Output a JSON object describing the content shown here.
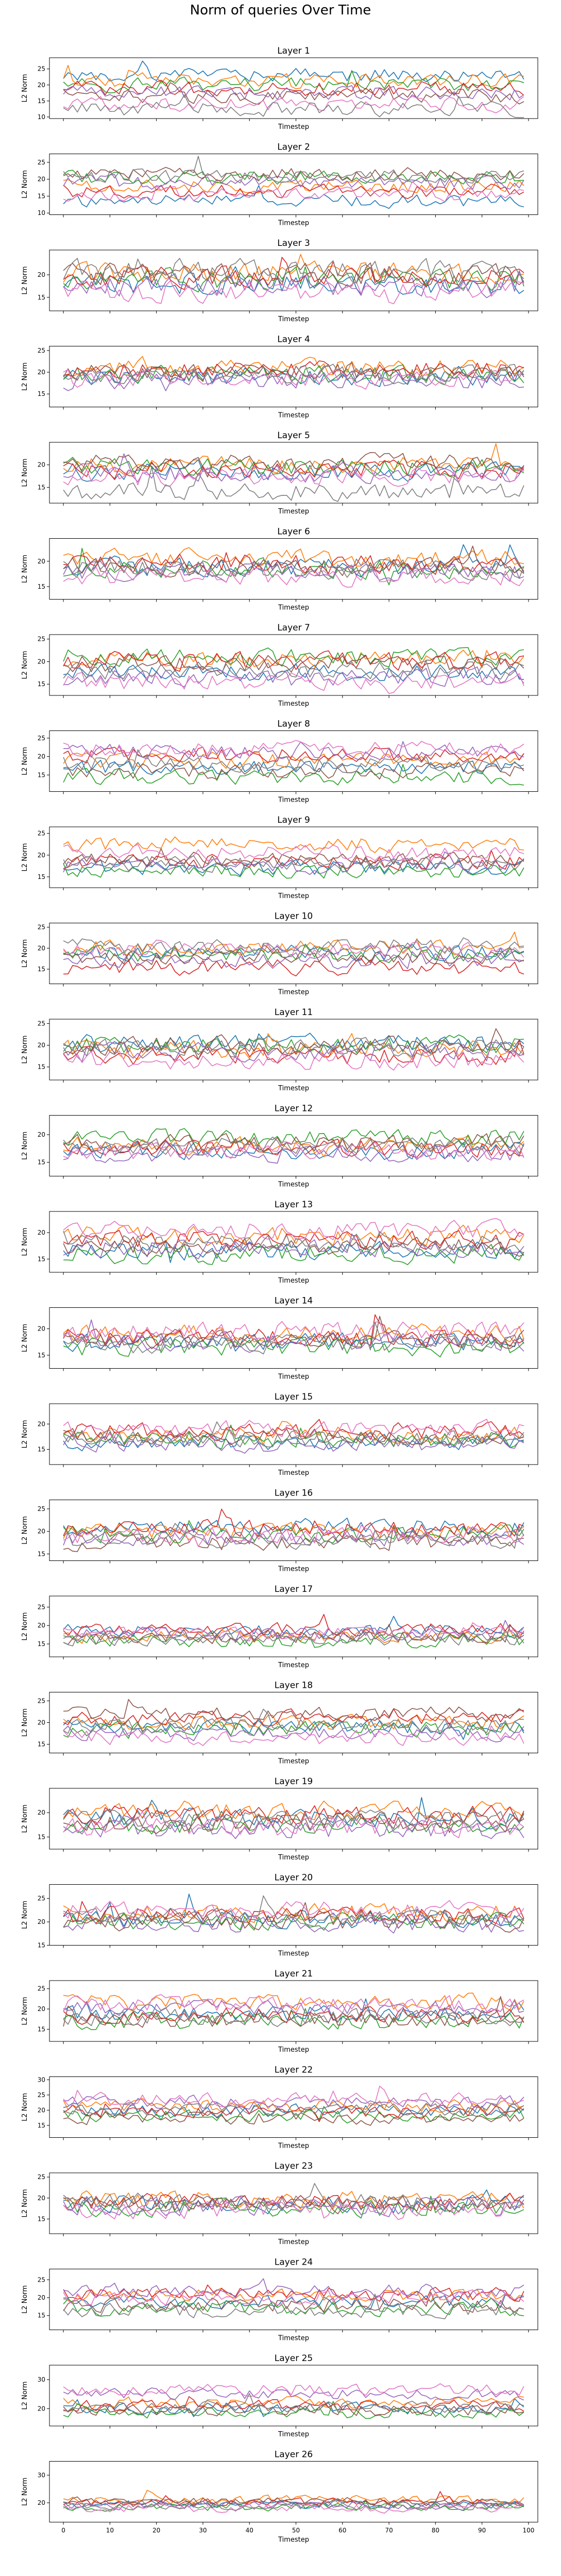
{
  "suptitle": "Norm of queries Over Time",
  "colors": [
    "#1f77b4",
    "#ff7f0e",
    "#2ca02c",
    "#d62728",
    "#9467bd",
    "#8c564b",
    "#e377c2",
    "#7f7f7f"
  ],
  "chart_data": [
    {
      "type": "line",
      "title": "Layer 1",
      "xlabel": "Timestep",
      "ylabel": "L2 Norm",
      "xlim": [
        -3,
        102
      ],
      "ylim": [
        9.5,
        28.5
      ],
      "yticks": [
        10,
        15,
        20,
        25
      ],
      "xticks": [
        0,
        10,
        20,
        30,
        40,
        50,
        60,
        70,
        80,
        90,
        100
      ],
      "x_tick_labels_shown": false,
      "grid": false,
      "legend": "none",
      "steps": 100,
      "means": [
        23.0,
        21.5,
        20.0,
        19.0,
        17.5,
        16.5,
        14.0,
        12.5
      ],
      "amplitude": 2.1,
      "seed": 1
    },
    {
      "type": "line",
      "title": "Layer 2",
      "xlabel": "Timestep",
      "ylabel": "L2 Norm",
      "xlim": [
        -3,
        102
      ],
      "ylim": [
        9.5,
        27.5
      ],
      "yticks": [
        10,
        15,
        20,
        25
      ],
      "xticks": [
        0,
        10,
        20,
        30,
        40,
        50,
        60,
        70,
        80,
        90,
        100
      ],
      "x_tick_labels_shown": false,
      "grid": false,
      "legend": "none",
      "steps": 100,
      "means": [
        13.5,
        18.0,
        20.5,
        16.5,
        19.0,
        21.5,
        15.5,
        21.0
      ],
      "amplitude": 1.8,
      "seed": 2
    },
    {
      "type": "line",
      "title": "Layer 3",
      "xlabel": "Timestep",
      "ylabel": "L2 Norm",
      "xlim": [
        -3,
        102
      ],
      "ylim": [
        12,
        25.5
      ],
      "yticks": [
        15,
        20
      ],
      "xticks": [
        0,
        10,
        20,
        30,
        40,
        50,
        60,
        70,
        80,
        90,
        100
      ],
      "x_tick_labels_shown": false,
      "grid": false,
      "legend": "none",
      "steps": 100,
      "means": [
        18.0,
        20.5,
        19.0,
        19.5,
        17.5,
        20.0,
        16.5,
        21.0
      ],
      "amplitude": 2.2,
      "seed": 3
    },
    {
      "type": "line",
      "title": "Layer 4",
      "xlabel": "Timestep",
      "ylabel": "L2 Norm",
      "xlim": [
        -3,
        102
      ],
      "ylim": [
        12,
        26
      ],
      "yticks": [
        15,
        20,
        25
      ],
      "xticks": [
        0,
        10,
        20,
        30,
        40,
        50,
        60,
        70,
        80,
        90,
        100
      ],
      "x_tick_labels_shown": false,
      "grid": false,
      "legend": "none",
      "steps": 100,
      "means": [
        19.0,
        21.0,
        19.5,
        20.5,
        18.0,
        20.0,
        18.5,
        19.5
      ],
      "amplitude": 1.9,
      "seed": 4
    },
    {
      "type": "line",
      "title": "Layer 5",
      "xlabel": "Timestep",
      "ylabel": "L2 Norm",
      "xlim": [
        -3,
        102
      ],
      "ylim": [
        11.5,
        25
      ],
      "yticks": [
        15,
        20
      ],
      "xticks": [
        0,
        10,
        20,
        30,
        40,
        50,
        60,
        70,
        80,
        90,
        100
      ],
      "x_tick_labels_shown": false,
      "grid": false,
      "legend": "none",
      "steps": 100,
      "means": [
        18.5,
        20.0,
        19.5,
        19.0,
        18.0,
        20.5,
        17.5,
        14.0
      ],
      "amplitude": 1.8,
      "seed": 5
    },
    {
      "type": "line",
      "title": "Layer 6",
      "xlabel": "Timestep",
      "ylabel": "L2 Norm",
      "xlim": [
        -3,
        102
      ],
      "ylim": [
        12.5,
        24.5
      ],
      "yticks": [
        15,
        20
      ],
      "xticks": [
        0,
        10,
        20,
        30,
        40,
        50,
        60,
        70,
        80,
        90,
        100
      ],
      "x_tick_labels_shown": false,
      "grid": false,
      "legend": "none",
      "steps": 100,
      "means": [
        19.0,
        20.5,
        18.5,
        19.5,
        18.0,
        19.0,
        17.0,
        18.5
      ],
      "amplitude": 1.7,
      "seed": 6
    },
    {
      "type": "line",
      "title": "Layer 7",
      "xlabel": "Timestep",
      "ylabel": "L2 Norm",
      "xlim": [
        -3,
        102
      ],
      "ylim": [
        12.5,
        26
      ],
      "yticks": [
        15,
        20,
        25
      ],
      "xticks": [
        0,
        10,
        20,
        30,
        40,
        50,
        60,
        70,
        80,
        90,
        100
      ],
      "x_tick_labels_shown": false,
      "grid": false,
      "legend": "none",
      "steps": 100,
      "means": [
        17.5,
        20.5,
        21.0,
        20.0,
        16.5,
        19.5,
        15.5,
        18.0
      ],
      "amplitude": 1.8,
      "seed": 7
    },
    {
      "type": "line",
      "title": "Layer 8",
      "xlabel": "Timestep",
      "ylabel": "L2 Norm",
      "xlim": [
        -3,
        102
      ],
      "ylim": [
        10.5,
        27
      ],
      "yticks": [
        15,
        20,
        25
      ],
      "xticks": [
        0,
        10,
        20,
        30,
        40,
        50,
        60,
        70,
        80,
        90,
        100
      ],
      "x_tick_labels_shown": false,
      "grid": false,
      "legend": "none",
      "steps": 100,
      "means": [
        17.0,
        19.0,
        14.5,
        20.5,
        21.5,
        16.0,
        22.0,
        18.0
      ],
      "amplitude": 1.9,
      "seed": 8
    },
    {
      "type": "line",
      "title": "Layer 9",
      "xlabel": "Timestep",
      "ylabel": "L2 Norm",
      "xlim": [
        -3,
        102
      ],
      "ylim": [
        12.5,
        26.5
      ],
      "yticks": [
        15,
        20,
        25
      ],
      "xticks": [
        0,
        10,
        20,
        30,
        40,
        50,
        60,
        70,
        80,
        90,
        100
      ],
      "x_tick_labels_shown": false,
      "grid": false,
      "legend": "none",
      "steps": 100,
      "means": [
        17.0,
        22.5,
        16.5,
        18.5,
        17.5,
        19.0,
        20.5,
        18.0
      ],
      "amplitude": 1.6,
      "seed": 9
    },
    {
      "type": "line",
      "title": "Layer 10",
      "xlabel": "Timestep",
      "ylabel": "L2 Norm",
      "xlim": [
        -3,
        102
      ],
      "ylim": [
        11.5,
        26
      ],
      "yticks": [
        15,
        20,
        25
      ],
      "xticks": [
        0,
        10,
        20,
        30,
        40,
        50,
        60,
        70,
        80,
        90,
        100
      ],
      "x_tick_labels_shown": false,
      "grid": false,
      "legend": "none",
      "steps": 100,
      "means": [
        19.0,
        20.0,
        18.5,
        15.5,
        17.0,
        18.0,
        19.5,
        20.5
      ],
      "amplitude": 1.7,
      "seed": 10
    },
    {
      "type": "line",
      "title": "Layer 11",
      "xlabel": "Timestep",
      "ylabel": "L2 Norm",
      "xlim": [
        -3,
        102
      ],
      "ylim": [
        12,
        26
      ],
      "yticks": [
        15,
        20,
        25
      ],
      "xticks": [
        0,
        10,
        20,
        30,
        40,
        50,
        60,
        70,
        80,
        90,
        100
      ],
      "x_tick_labels_shown": false,
      "grid": false,
      "legend": "none",
      "steps": 100,
      "means": [
        20.5,
        19.0,
        20.0,
        17.5,
        18.5,
        20.0,
        16.5,
        19.5
      ],
      "amplitude": 1.9,
      "seed": 11
    },
    {
      "type": "line",
      "title": "Layer 12",
      "xlabel": "Timestep",
      "ylabel": "L2 Norm",
      "xlim": [
        -3,
        102
      ],
      "ylim": [
        12.5,
        23.5
      ],
      "yticks": [
        15,
        20
      ],
      "xticks": [
        0,
        10,
        20,
        30,
        40,
        50,
        60,
        70,
        80,
        90,
        100
      ],
      "x_tick_labels_shown": false,
      "grid": false,
      "legend": "none",
      "steps": 100,
      "means": [
        17.0,
        18.0,
        19.5,
        17.5,
        16.5,
        18.5,
        17.0,
        18.0
      ],
      "amplitude": 1.4,
      "seed": 12
    },
    {
      "type": "line",
      "title": "Layer 13",
      "xlabel": "Timestep",
      "ylabel": "L2 Norm",
      "xlim": [
        -3,
        102
      ],
      "ylim": [
        12.5,
        24
      ],
      "yticks": [
        15,
        20
      ],
      "xticks": [
        0,
        10,
        20,
        30,
        40,
        50,
        60,
        70,
        80,
        90,
        100
      ],
      "x_tick_labels_shown": false,
      "grid": false,
      "legend": "none",
      "steps": 100,
      "means": [
        16.5,
        19.5,
        16.0,
        18.5,
        17.0,
        17.5,
        20.5,
        18.0
      ],
      "amplitude": 1.6,
      "seed": 13
    },
    {
      "type": "line",
      "title": "Layer 14",
      "xlabel": "Timestep",
      "ylabel": "L2 Norm",
      "xlim": [
        -3,
        102
      ],
      "ylim": [
        12.5,
        24
      ],
      "yticks": [
        15,
        20
      ],
      "xticks": [
        0,
        10,
        20,
        30,
        40,
        50,
        60,
        70,
        80,
        90,
        100
      ],
      "x_tick_labels_shown": false,
      "grid": false,
      "legend": "none",
      "steps": 100,
      "means": [
        17.5,
        19.0,
        16.5,
        18.5,
        17.5,
        18.0,
        19.5,
        17.0
      ],
      "amplitude": 1.6,
      "seed": 14
    },
    {
      "type": "line",
      "title": "Layer 15",
      "xlabel": "Timestep",
      "ylabel": "L2 Norm",
      "xlim": [
        -3,
        102
      ],
      "ylim": [
        12,
        24
      ],
      "yticks": [
        15,
        20
      ],
      "xticks": [
        0,
        10,
        20,
        30,
        40,
        50,
        60,
        70,
        80,
        90,
        100
      ],
      "x_tick_labels_shown": false,
      "grid": false,
      "legend": "none",
      "steps": 100,
      "means": [
        16.5,
        18.0,
        17.0,
        18.5,
        16.0,
        17.5,
        19.0,
        17.0
      ],
      "amplitude": 1.5,
      "seed": 15
    },
    {
      "type": "line",
      "title": "Layer 16",
      "xlabel": "Timestep",
      "ylabel": "L2 Norm",
      "xlim": [
        -3,
        102
      ],
      "ylim": [
        13.5,
        27
      ],
      "yticks": [
        15,
        20,
        25
      ],
      "xticks": [
        0,
        10,
        20,
        30,
        40,
        50,
        60,
        70,
        80,
        90,
        100
      ],
      "x_tick_labels_shown": false,
      "grid": false,
      "legend": "none",
      "steps": 100,
      "means": [
        21.0,
        20.0,
        19.5,
        20.5,
        18.5,
        17.5,
        19.0,
        18.0
      ],
      "amplitude": 1.7,
      "seed": 16
    },
    {
      "type": "line",
      "title": "Layer 17",
      "xlabel": "Timestep",
      "ylabel": "L2 Norm",
      "xlim": [
        -3,
        102
      ],
      "ylim": [
        11.5,
        28
      ],
      "yticks": [
        15,
        20,
        25
      ],
      "xticks": [
        0,
        10,
        20,
        30,
        40,
        50,
        60,
        70,
        80,
        90,
        100
      ],
      "x_tick_labels_shown": false,
      "grid": false,
      "legend": "none",
      "steps": 100,
      "means": [
        18.5,
        17.0,
        16.0,
        19.0,
        17.5,
        17.0,
        18.0,
        16.5
      ],
      "amplitude": 1.7,
      "seed": 17
    },
    {
      "type": "line",
      "title": "Layer 18",
      "xlabel": "Timestep",
      "ylabel": "L2 Norm",
      "xlim": [
        -3,
        102
      ],
      "ylim": [
        13,
        27
      ],
      "yticks": [
        15,
        20,
        25
      ],
      "xticks": [
        0,
        10,
        20,
        30,
        40,
        50,
        60,
        70,
        80,
        90,
        100
      ],
      "x_tick_labels_shown": false,
      "grid": false,
      "legend": "none",
      "steps": 100,
      "means": [
        19.0,
        20.0,
        18.5,
        21.0,
        17.5,
        22.0,
        16.5,
        19.5
      ],
      "amplitude": 1.6,
      "seed": 18
    },
    {
      "type": "line",
      "title": "Layer 19",
      "xlabel": "Timestep",
      "ylabel": "L2 Norm",
      "xlim": [
        -3,
        102
      ],
      "ylim": [
        12.5,
        25
      ],
      "yticks": [
        15,
        20
      ],
      "xticks": [
        0,
        10,
        20,
        30,
        40,
        50,
        60,
        70,
        80,
        90,
        100
      ],
      "x_tick_labels_shown": false,
      "grid": false,
      "legend": "none",
      "steps": 100,
      "means": [
        19.0,
        20.5,
        17.5,
        19.5,
        16.5,
        18.0,
        17.0,
        18.5
      ],
      "amplitude": 1.8,
      "seed": 19
    },
    {
      "type": "line",
      "title": "Layer 20",
      "xlabel": "Timestep",
      "ylabel": "L2 Norm",
      "xlim": [
        -3,
        102
      ],
      "ylim": [
        15,
        28
      ],
      "yticks": [
        15,
        20,
        25
      ],
      "xticks": [
        0,
        10,
        20,
        30,
        40,
        50,
        60,
        70,
        80,
        90,
        100
      ],
      "x_tick_labels_shown": false,
      "grid": false,
      "legend": "none",
      "steps": 100,
      "means": [
        20.5,
        22.0,
        20.0,
        21.5,
        19.5,
        20.0,
        22.5,
        21.0
      ],
      "amplitude": 1.7,
      "seed": 20
    },
    {
      "type": "line",
      "title": "Layer 21",
      "xlabel": "Timestep",
      "ylabel": "L2 Norm",
      "xlim": [
        -3,
        102
      ],
      "ylim": [
        12,
        27
      ],
      "yticks": [
        15,
        20,
        25
      ],
      "xticks": [
        0,
        10,
        20,
        30,
        40,
        50,
        60,
        70,
        80,
        90,
        100
      ],
      "x_tick_labels_shown": false,
      "grid": false,
      "legend": "none",
      "steps": 100,
      "means": [
        19.0,
        21.5,
        17.0,
        18.5,
        20.0,
        17.5,
        21.0,
        18.0
      ],
      "amplitude": 1.9,
      "seed": 21
    },
    {
      "type": "line",
      "title": "Layer 22",
      "xlabel": "Timestep",
      "ylabel": "L2 Norm",
      "xlim": [
        -3,
        102
      ],
      "ylim": [
        11,
        31
      ],
      "yticks": [
        15,
        20,
        25,
        30
      ],
      "xticks": [
        0,
        10,
        20,
        30,
        40,
        50,
        60,
        70,
        80,
        90,
        100
      ],
      "x_tick_labels_shown": false,
      "grid": false,
      "legend": "none",
      "steps": 100,
      "means": [
        20.0,
        21.5,
        18.0,
        19.5,
        22.5,
        17.5,
        23.5,
        20.5
      ],
      "amplitude": 2.0,
      "seed": 22
    },
    {
      "type": "line",
      "title": "Layer 23",
      "xlabel": "Timestep",
      "ylabel": "L2 Norm",
      "xlim": [
        -3,
        102
      ],
      "ylim": [
        11.5,
        26
      ],
      "yticks": [
        15,
        20,
        25
      ],
      "xticks": [
        0,
        10,
        20,
        30,
        40,
        50,
        60,
        70,
        80,
        90,
        100
      ],
      "x_tick_labels_shown": false,
      "grid": false,
      "legend": "none",
      "steps": 100,
      "means": [
        18.5,
        19.5,
        17.5,
        19.0,
        18.0,
        18.5,
        17.0,
        19.0
      ],
      "amplitude": 1.9,
      "seed": 23
    },
    {
      "type": "line",
      "title": "Layer 24",
      "xlabel": "Timestep",
      "ylabel": "L2 Norm",
      "xlim": [
        -3,
        102
      ],
      "ylim": [
        11,
        28
      ],
      "yticks": [
        15,
        20,
        25
      ],
      "xticks": [
        0,
        10,
        20,
        30,
        40,
        50,
        60,
        70,
        80,
        90,
        100
      ],
      "x_tick_labels_shown": false,
      "grid": false,
      "legend": "none",
      "steps": 100,
      "means": [
        19.0,
        20.5,
        17.0,
        21.0,
        22.0,
        18.0,
        20.0,
        16.5
      ],
      "amplitude": 1.8,
      "seed": 24
    },
    {
      "type": "line",
      "title": "Layer 25",
      "xlabel": "Timestep",
      "ylabel": "L2 Norm",
      "xlim": [
        -3,
        102
      ],
      "ylim": [
        14,
        35
      ],
      "yticks": [
        20,
        30
      ],
      "xticks": [
        0,
        10,
        20,
        30,
        40,
        50,
        60,
        70,
        80,
        90,
        100
      ],
      "x_tick_labels_shown": false,
      "grid": false,
      "legend": "none",
      "steps": 100,
      "means": [
        20.0,
        22.0,
        18.5,
        21.0,
        25.0,
        19.5,
        26.5,
        20.5
      ],
      "amplitude": 1.8,
      "seed": 25
    },
    {
      "type": "line",
      "title": "Layer 26",
      "xlabel": "Timestep",
      "ylabel": "L2 Norm",
      "xlim": [
        -3,
        102
      ],
      "ylim": [
        13,
        35
      ],
      "yticks": [
        20,
        30
      ],
      "xticks": [
        0,
        10,
        20,
        30,
        40,
        50,
        60,
        70,
        80,
        90,
        100
      ],
      "x_tick_labels_shown": true,
      "grid": false,
      "legend": "none",
      "steps": 100,
      "means": [
        19.5,
        21.0,
        18.5,
        20.0,
        19.0,
        20.5,
        18.0,
        19.0
      ],
      "amplitude": 1.4,
      "seed": 26
    }
  ]
}
